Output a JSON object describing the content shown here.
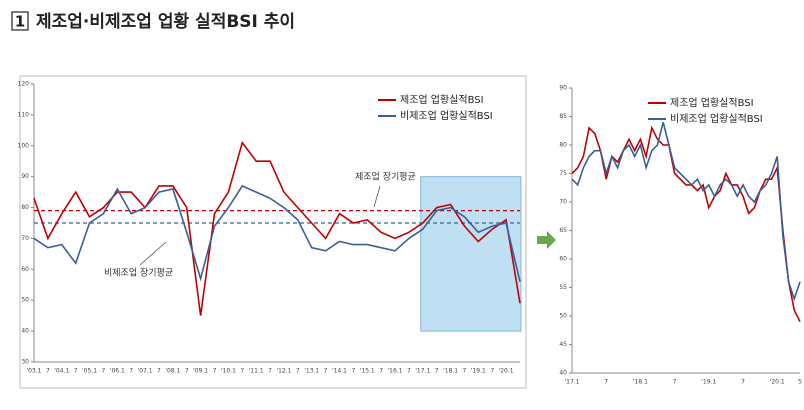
{
  "header": {
    "number": "1",
    "title": "제조업·비제조업 업황 실적BSI 추이"
  },
  "chart_data": [
    {
      "type": "line",
      "categories": [
        "'03.1",
        "7",
        "'04.1",
        "7",
        "'05.1",
        "7",
        "'06.1",
        "7",
        "'07.1",
        "7",
        "'08.1",
        "7",
        "'09.1",
        "7",
        "'10.1",
        "7",
        "'11.1",
        "7",
        "'12.1",
        "7",
        "'13.1",
        "7",
        "'14.1",
        "7",
        "'15.1",
        "7",
        "'16.1",
        "7",
        "'17.1",
        "7",
        "'18.1",
        "7",
        "'19.1",
        "7",
        "'20.1",
        null
      ],
      "series": [
        {
          "name": "제조업 업황실적BSI",
          "color": "#c00000",
          "values": [
            83,
            70,
            78,
            85,
            77,
            80,
            85,
            85,
            80,
            87,
            87,
            80,
            45,
            78,
            85,
            101,
            95,
            95,
            85,
            80,
            75,
            70,
            78,
            75,
            76,
            72,
            70,
            72,
            75,
            80,
            81,
            74,
            69,
            73,
            76,
            49
          ]
        },
        {
          "name": "비제조업 업황실적BSI",
          "color": "#3a5f96",
          "values": [
            70,
            67,
            68,
            62,
            75,
            78,
            86,
            78,
            80,
            85,
            86,
            72,
            57,
            74,
            80,
            87,
            85,
            83,
            80,
            76,
            67,
            66,
            69,
            68,
            68,
            67,
            66,
            70,
            73,
            79,
            80,
            77,
            72,
            74,
            75,
            56
          ]
        }
      ],
      "reference_lines": [
        {
          "value": 79,
          "color": "#c00000",
          "label": "제조업 장기평균"
        },
        {
          "value": 75,
          "color": "#3a5f96",
          "label": "비제조업 장기평균"
        }
      ],
      "ylim": [
        30,
        120
      ],
      "yticks": [
        30,
        40,
        50,
        60,
        70,
        80,
        90,
        100,
        110,
        120
      ],
      "grid": false
    },
    {
      "type": "line",
      "categories": [
        "'17.1",
        null,
        null,
        null,
        null,
        null,
        "7",
        null,
        null,
        null,
        null,
        null,
        "'18.1",
        null,
        null,
        null,
        null,
        null,
        "7",
        null,
        null,
        null,
        null,
        null,
        "'19.1",
        null,
        null,
        null,
        null,
        null,
        "7",
        null,
        null,
        null,
        null,
        null,
        "'20.1",
        null,
        null,
        null,
        "5"
      ],
      "series": [
        {
          "name": "제조업 업황실적BSI",
          "color": "#c00000",
          "values": [
            75,
            76,
            78,
            83,
            82,
            79,
            74,
            78,
            77,
            79,
            81,
            79,
            81,
            78,
            83,
            81,
            80,
            80,
            75,
            74,
            73,
            73,
            72,
            73,
            69,
            71,
            72,
            75,
            73,
            73,
            71,
            68,
            69,
            72,
            74,
            74,
            76,
            65,
            56,
            51,
            49
          ]
        },
        {
          "name": "비제조업 업황실적BSI",
          "color": "#3a5f96",
          "values": [
            74,
            73,
            76,
            78,
            79,
            79,
            75,
            78,
            76,
            79,
            80,
            78,
            80,
            76,
            79,
            80,
            84,
            80,
            76,
            75,
            74,
            73,
            74,
            72,
            73,
            71,
            73,
            74,
            73,
            71,
            73,
            71,
            70,
            72,
            73,
            75,
            78,
            64,
            56,
            53,
            56
          ]
        }
      ],
      "ylim": [
        40,
        90
      ],
      "yticks": [
        40,
        45,
        50,
        55,
        60,
        65,
        70,
        75,
        80,
        85,
        90
      ],
      "grid": false
    }
  ]
}
